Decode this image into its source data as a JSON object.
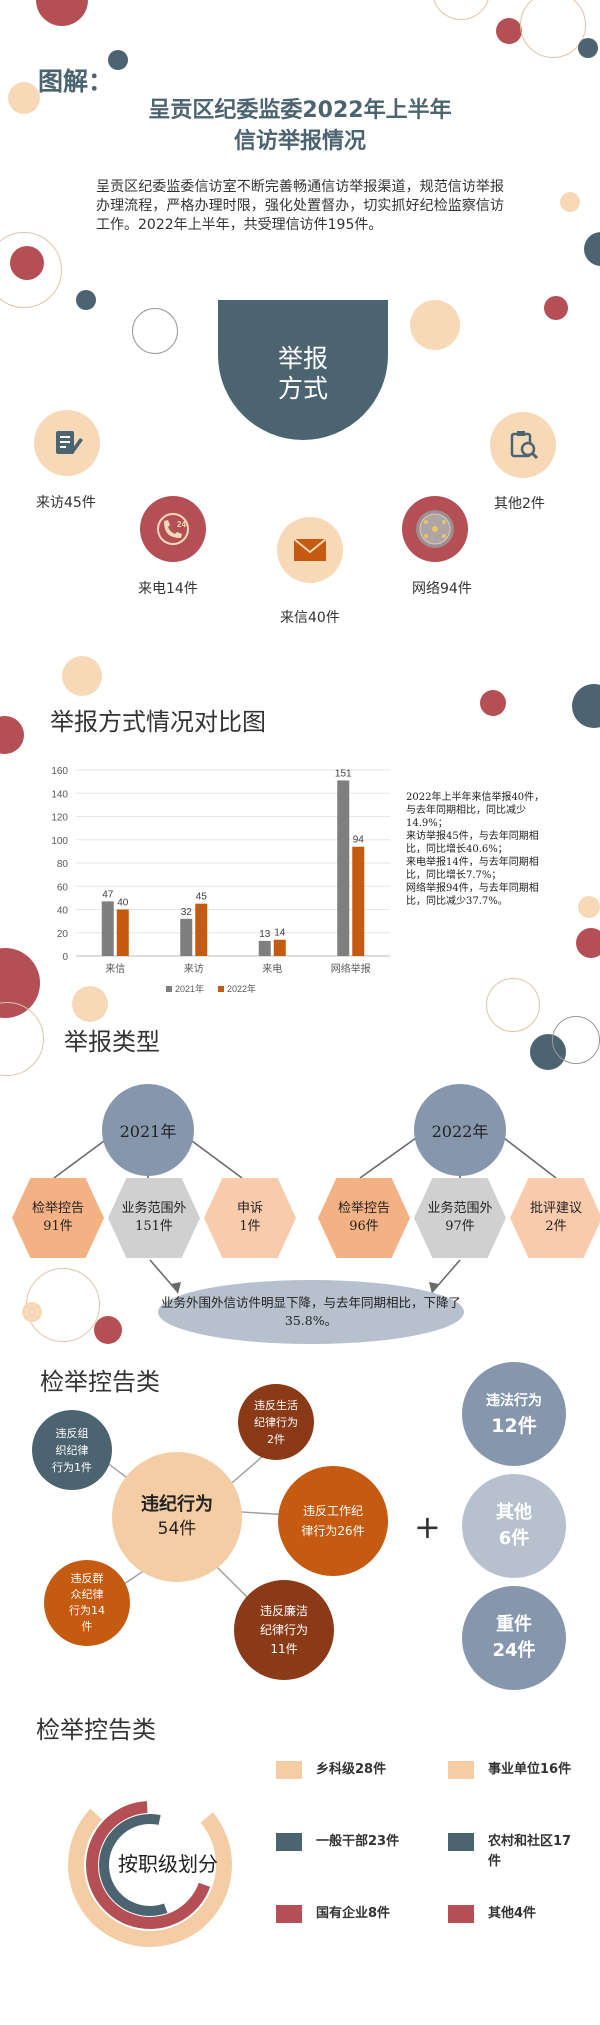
{
  "header": {
    "tag": "图解：",
    "title_line1": "呈贡区纪委监委2022年上半年",
    "title_line2": "信访举报情况",
    "intro": "呈贡区纪委监委信访室不断完善畅通信访举报渠道，规范信访举报办理流程，严格办理时限，强化处置督办，切实抓好纪检监察信访工作。2022年上半年，共受理信访件195件。"
  },
  "methods": {
    "title_line1": "举报",
    "title_line2": "方式",
    "items": [
      {
        "label": "来访45件",
        "icon": "document-pen-icon"
      },
      {
        "label": "来电14件",
        "icon": "phone-24-icon"
      },
      {
        "label": "来信40件",
        "icon": "envelope-icon"
      },
      {
        "label": "网络94件",
        "icon": "globe-icon"
      },
      {
        "label": "其他2件",
        "icon": "clipboard-search-icon"
      }
    ]
  },
  "comparison": {
    "title": "举报方式情况对比图",
    "notes": [
      "2022年上半年来信举报40件，与去年同期相比，同比减少14.9%；",
      "来访举报45件，与去年同期相比，同比增长40.6%；",
      "来电举报14件，与去年同期相比，同比增长7.7%；",
      "网络举报94件，与去年同期相比，同比减少37.7%。"
    ]
  },
  "chart_data": {
    "type": "bar",
    "categories": [
      "来信",
      "来访",
      "来电",
      "网络举报"
    ],
    "series": [
      {
        "name": "2021年",
        "values": [
          47,
          32,
          13,
          151
        ],
        "color": "#7f7f7f"
      },
      {
        "name": "2022年",
        "values": [
          40,
          45,
          14,
          94
        ],
        "color": "#c55a11"
      }
    ],
    "ylim": [
      0,
      160
    ],
    "yticks": [
      "0",
      "20",
      "40",
      "60",
      "80",
      "100",
      "120",
      "140",
      "160"
    ],
    "grid": true,
    "legend": "bottom"
  },
  "types": {
    "title": "举报类型",
    "year_2021": "2021年",
    "year_2022": "2022年",
    "items_2021": [
      {
        "name": "检举控告",
        "count": "91件",
        "color": "#f4b183"
      },
      {
        "name": "业务范围外",
        "count": "151件",
        "color": "#d0d0d0"
      },
      {
        "name": "申诉",
        "count": "1件",
        "color": "#f8cbad"
      }
    ],
    "items_2022": [
      {
        "name": "检举控告",
        "count": "96件",
        "color": "#f4b183"
      },
      {
        "name": "业务范围外",
        "count": "97件",
        "color": "#d0d0d0"
      },
      {
        "name": "批评建议",
        "count": "2件",
        "color": "#f8cbad"
      }
    ],
    "summary": "业务外围外信访件明显下降，与去年同期相比，下降了35.8%。"
  },
  "accusation": {
    "title": "检举控告类",
    "center_line1": "违纪行为",
    "center_line2": "54件",
    "sub": [
      {
        "line1": "违反组",
        "line2": "织纪律",
        "line3": "行为1件"
      },
      {
        "line1": "违反生活",
        "line2": "纪律行为",
        "line3": "2件"
      },
      {
        "line1": "违反工作纪",
        "line2": "律行为26件",
        "line3": ""
      },
      {
        "line1": "违反廉洁",
        "line2": "纪律行为",
        "line3": "11件"
      },
      {
        "line1": "违反群",
        "line2": "众纪律",
        "line3": "行为14",
        "line4": "件"
      }
    ],
    "plus": "+",
    "right": [
      {
        "line1": "违法行为",
        "line2": "12件"
      },
      {
        "line1": "其他",
        "line2": "6件"
      },
      {
        "line1": "重件",
        "line2": "24件"
      }
    ]
  },
  "level": {
    "title": "检举控告类",
    "center": "按职级划分",
    "legend": [
      {
        "label": "乡科级28件",
        "color": "#f4cda4"
      },
      {
        "label": "事业单位16件",
        "color": "#f4cda4"
      },
      {
        "label": "一般干部23件",
        "color": "#4b6470"
      },
      {
        "label": "农村和社区17件",
        "color": "#4b6470"
      },
      {
        "label": "国有企业8件",
        "color": "#b34f55"
      },
      {
        "label": "其他4件",
        "color": "#b34f55"
      }
    ]
  }
}
